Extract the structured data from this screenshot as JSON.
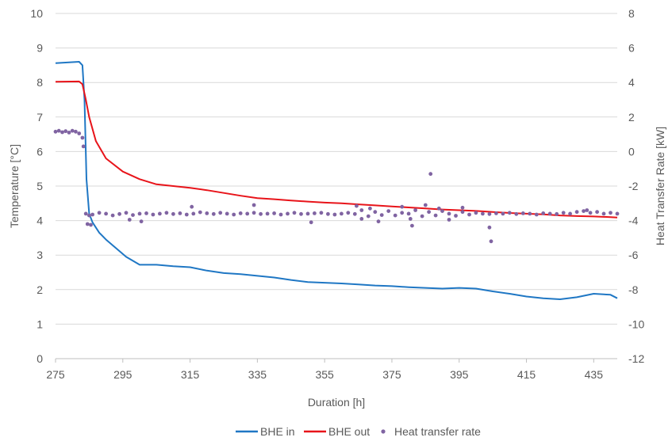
{
  "chart_data": {
    "type": "line",
    "title": "",
    "xlabel": "Duration [h]",
    "ylabel_left": "Temperature [°C]",
    "ylabel_right": "Heat Transfer Rate [kW]",
    "xlim": [
      275,
      442
    ],
    "ylim_left": [
      0,
      10
    ],
    "ylim_right": [
      -12,
      8
    ],
    "x_ticks": [
      "275",
      "295",
      "315",
      "335",
      "355",
      "375",
      "395",
      "415",
      "435"
    ],
    "y_left_ticks": [
      "0",
      "1",
      "2",
      "3",
      "4",
      "5",
      "6",
      "7",
      "8",
      "9",
      "10"
    ],
    "y_right_ticks": [
      "-12",
      "-10",
      "-8",
      "-6",
      "-4",
      "-2",
      "0",
      "2",
      "4",
      "6",
      "8"
    ],
    "grid": "horizontal",
    "legend_position": "bottom",
    "series": [
      {
        "name": "BHE in",
        "axis": "left",
        "color": "#1f77c4",
        "style": "line",
        "x": [
          275,
          282,
          283,
          283.6,
          284.2,
          285,
          286,
          288,
          290,
          293,
          296,
          300,
          305,
          310,
          315,
          320,
          325,
          330,
          335,
          340,
          345,
          350,
          355,
          360,
          365,
          370,
          375,
          380,
          385,
          390,
          395,
          400,
          405,
          410,
          415,
          420,
          425,
          430,
          435,
          440,
          442
        ],
        "values": [
          8.56,
          8.6,
          8.5,
          7.5,
          5.2,
          4.2,
          3.95,
          3.65,
          3.45,
          3.2,
          2.95,
          2.72,
          2.72,
          2.68,
          2.65,
          2.55,
          2.48,
          2.45,
          2.4,
          2.35,
          2.28,
          2.22,
          2.2,
          2.18,
          2.15,
          2.12,
          2.1,
          2.07,
          2.05,
          2.03,
          2.05,
          2.03,
          1.95,
          1.88,
          1.8,
          1.75,
          1.72,
          1.78,
          1.88,
          1.85,
          1.75
        ]
      },
      {
        "name": "BHE out",
        "axis": "left",
        "color": "#e8141a",
        "style": "line",
        "x": [
          275,
          282,
          283,
          284,
          285,
          287,
          290,
          295,
          300,
          305,
          310,
          315,
          320,
          325,
          330,
          335,
          340,
          345,
          350,
          355,
          360,
          365,
          370,
          375,
          380,
          385,
          390,
          395,
          400,
          405,
          410,
          415,
          420,
          425,
          430,
          435,
          440,
          442
        ],
        "values": [
          8.02,
          8.03,
          7.95,
          7.5,
          7.0,
          6.3,
          5.8,
          5.42,
          5.2,
          5.05,
          5.0,
          4.95,
          4.88,
          4.8,
          4.72,
          4.65,
          4.62,
          4.58,
          4.55,
          4.52,
          4.5,
          4.47,
          4.44,
          4.41,
          4.38,
          4.35,
          4.32,
          4.3,
          4.28,
          4.25,
          4.22,
          4.2,
          4.18,
          4.15,
          4.13,
          4.12,
          4.1,
          4.09
        ]
      },
      {
        "name": "Heat transfer rate",
        "axis": "right",
        "color": "#8064a2",
        "style": "scatter",
        "x": [
          275,
          276,
          277,
          278,
          279,
          280,
          281,
          282,
          283,
          283.3,
          284,
          285,
          286,
          288,
          290,
          292,
          294,
          296,
          298,
          300,
          302,
          304,
          306,
          308,
          310,
          312,
          314,
          316,
          318,
          320,
          322,
          324,
          326,
          328,
          330,
          332,
          334,
          336,
          338,
          340,
          342,
          344,
          346,
          348,
          350,
          352,
          354,
          356,
          358,
          360,
          362,
          364,
          366,
          368,
          370,
          372,
          374,
          376,
          378,
          380,
          382,
          384,
          386,
          388,
          390,
          392,
          394,
          396,
          398,
          400,
          402,
          404,
          406,
          408,
          410,
          412,
          414,
          416,
          418,
          420,
          422,
          424,
          426,
          428,
          430,
          432,
          434,
          436,
          438,
          440,
          442,
          284.5,
          285.5,
          297,
          300.5,
          315.5,
          334,
          351,
          364.5,
          366,
          368.5,
          371,
          378,
          380.5,
          385,
          386.5,
          389,
          392,
          396,
          404,
          404.5,
          381,
          433
        ],
        "values": [
          1.15,
          1.2,
          1.12,
          1.18,
          1.1,
          1.2,
          1.15,
          1.05,
          0.8,
          0.3,
          -3.6,
          -3.7,
          -3.65,
          -3.55,
          -3.6,
          -3.7,
          -3.62,
          -3.55,
          -3.68,
          -3.6,
          -3.58,
          -3.65,
          -3.6,
          -3.55,
          -3.62,
          -3.58,
          -3.65,
          -3.6,
          -3.52,
          -3.58,
          -3.62,
          -3.55,
          -3.6,
          -3.65,
          -3.58,
          -3.6,
          -3.55,
          -3.62,
          -3.6,
          -3.58,
          -3.65,
          -3.6,
          -3.55,
          -3.62,
          -3.6,
          -3.58,
          -3.55,
          -3.62,
          -3.65,
          -3.6,
          -3.55,
          -3.62,
          -3.4,
          -3.75,
          -3.5,
          -3.68,
          -3.45,
          -3.7,
          -3.55,
          -3.6,
          -3.4,
          -3.75,
          -3.5,
          -3.7,
          -3.45,
          -3.6,
          -3.72,
          -3.5,
          -3.65,
          -3.55,
          -3.6,
          -3.62,
          -3.58,
          -3.6,
          -3.55,
          -3.62,
          -3.58,
          -3.6,
          -3.65,
          -3.58,
          -3.6,
          -3.62,
          -3.55,
          -3.6,
          -3.5,
          -3.45,
          -3.55,
          -3.5,
          -3.6,
          -3.55,
          -3.6,
          -4.2,
          -4.25,
          -3.95,
          -4.05,
          -3.2,
          -3.1,
          -4.1,
          -3.15,
          -3.9,
          -3.3,
          -4.05,
          -3.2,
          -3.9,
          -3.1,
          -1.3,
          -3.3,
          -3.95,
          -3.25,
          -4.4,
          -5.2,
          -4.3,
          -3.4
        ]
      }
    ]
  }
}
